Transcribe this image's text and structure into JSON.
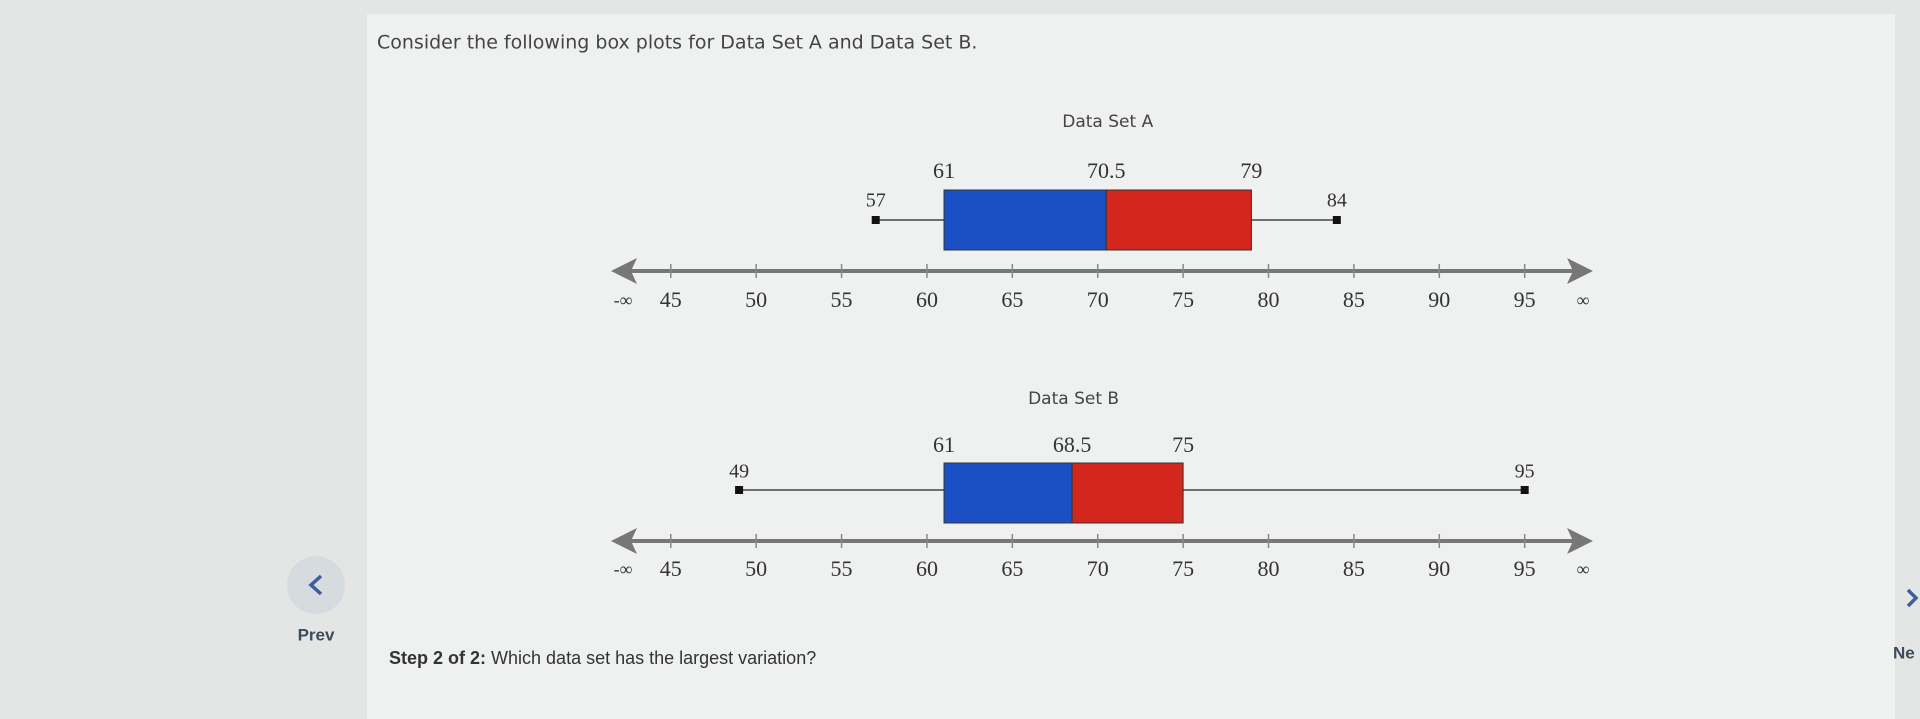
{
  "question": "Consider the following box plots for Data Set A and Data Set B.",
  "step_label": "Step 2 of 2:",
  "step_text": "Which data set has the largest variation?",
  "nav": {
    "prev": "Prev",
    "next": "Ne"
  },
  "chart_data": [
    {
      "type": "box",
      "title": "Data Set A",
      "min": 57,
      "q1": 61,
      "median": 70.5,
      "q3": 79,
      "max": 84,
      "colors": [
        "#1b4fc4",
        "#d3261c"
      ],
      "xlim": [
        41.5,
        99
      ],
      "xticks": [
        45,
        50,
        55,
        60,
        65,
        70,
        75,
        80,
        85,
        90,
        95
      ],
      "axis_end_labels": [
        "-∞",
        "∞"
      ]
    },
    {
      "type": "box",
      "title": "Data Set B",
      "min": 49,
      "q1": 61,
      "median": 68.5,
      "q3": 75,
      "max": 95,
      "colors": [
        "#1b4fc4",
        "#d3261c"
      ],
      "xlim": [
        41.5,
        99
      ],
      "xticks": [
        45,
        50,
        55,
        60,
        65,
        70,
        75,
        80,
        85,
        90,
        95
      ],
      "axis_end_labels": [
        "-∞",
        "∞"
      ]
    }
  ]
}
